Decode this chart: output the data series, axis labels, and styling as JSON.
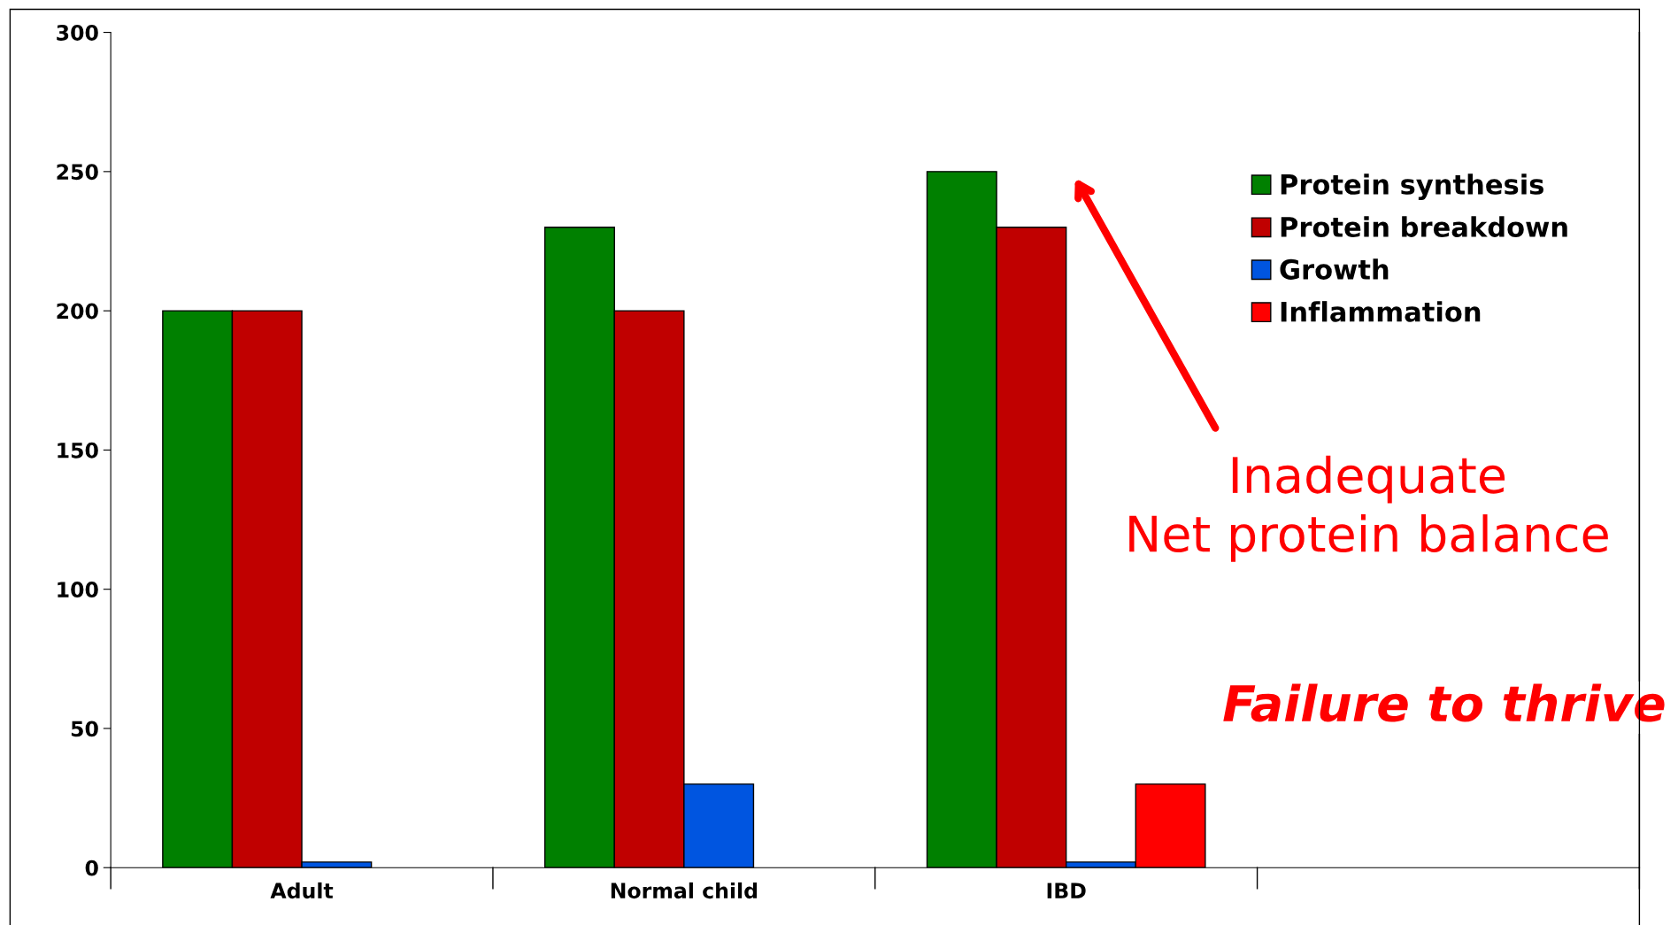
{
  "chart_data": {
    "type": "bar",
    "categories": [
      "Adult",
      "Normal child",
      "IBD",
      null
    ],
    "series": [
      {
        "name": "Protein synthesis",
        "color": "#008000",
        "values": [
          200,
          230,
          250,
          null
        ]
      },
      {
        "name": "Protein breakdown",
        "color": "#c00000",
        "values": [
          200,
          200,
          230,
          null
        ]
      },
      {
        "name": "Growth",
        "color": "#0055e0",
        "values": [
          2,
          30,
          2,
          null
        ]
      },
      {
        "name": "Inflammation",
        "color": "#ff0000",
        "values": [
          null,
          null,
          30,
          null
        ]
      }
    ],
    "ylim": [
      0,
      300
    ],
    "yticks": [
      0,
      50,
      100,
      150,
      200,
      250,
      300
    ],
    "grid": false,
    "legend": "top right",
    "annotations": [
      "Inadequate\nNet protein balance",
      "Failure to thrive"
    ]
  }
}
